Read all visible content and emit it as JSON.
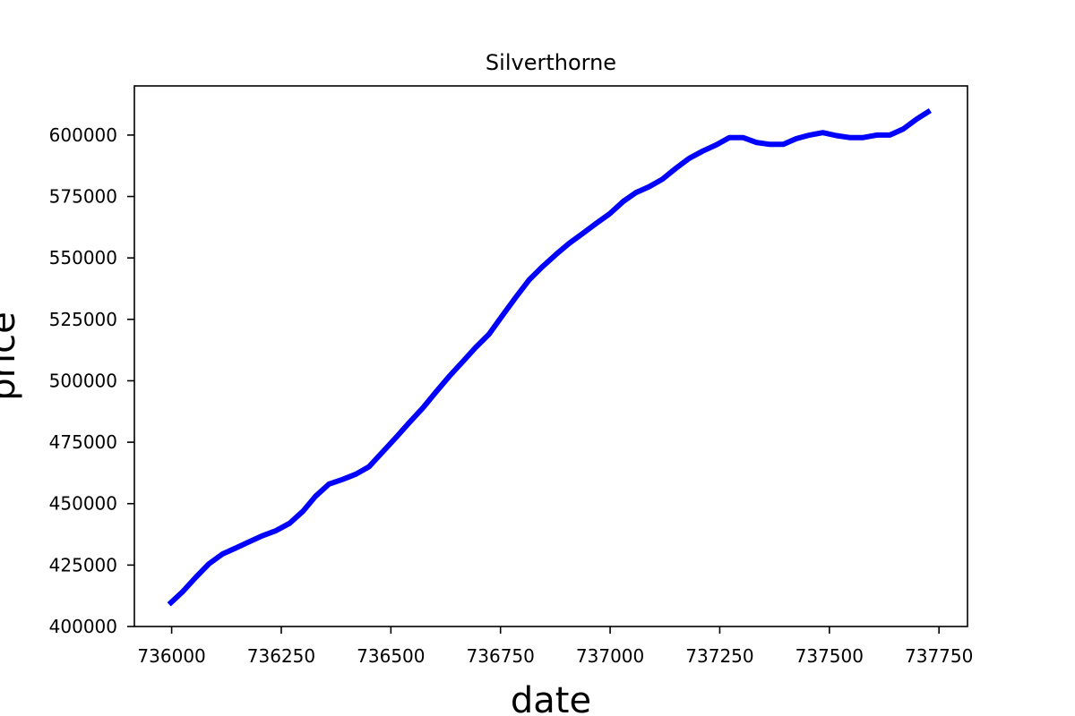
{
  "chart_data": {
    "type": "line",
    "title": "Silverthorne",
    "xlabel": "date",
    "ylabel": "price",
    "xlim": [
      735915,
      737815
    ],
    "ylim": [
      400000,
      620000
    ],
    "x_ticks": [
      736000,
      736250,
      736500,
      736750,
      737000,
      737250,
      737500,
      737750
    ],
    "y_ticks": [
      400000,
      425000,
      450000,
      475000,
      500000,
      525000,
      550000,
      575000,
      600000
    ],
    "x_tick_labels": [
      "736000",
      "736250",
      "736500",
      "736750",
      "737000",
      "737250",
      "737500",
      "737750"
    ],
    "y_tick_labels": [
      "400000",
      "425000",
      "450000",
      "475000",
      "500000",
      "525000",
      "550000",
      "575000",
      "600000"
    ],
    "grid": false,
    "series": [
      {
        "color": "#0000ff",
        "x": [
          735994,
          736024,
          736055,
          736085,
          736116,
          736147,
          736177,
          736208,
          736238,
          736269,
          736300,
          736328,
          736359,
          736389,
          736420,
          736450,
          736481,
          736512,
          736542,
          736573,
          736603,
          736634,
          736665,
          736693,
          736724,
          736754,
          736785,
          736815,
          736846,
          736877,
          736907,
          736938,
          736968,
          736999,
          737030,
          737058,
          737089,
          737119,
          737150,
          737180,
          737211,
          737242,
          737272,
          737303,
          737333,
          737364,
          737395,
          737424,
          737455,
          737485,
          737516,
          737546,
          737577,
          737608,
          737638,
          737669,
          737699,
          737730
        ],
        "y": [
          409000,
          414000,
          420000,
          425500,
          429500,
          432000,
          434500,
          437000,
          439000,
          442000,
          447000,
          453000,
          458000,
          459800,
          462000,
          465000,
          471000,
          477000,
          483000,
          489000,
          495500,
          502000,
          508000,
          513500,
          519000,
          526500,
          534000,
          541000,
          546500,
          551500,
          556000,
          560000,
          564000,
          568000,
          573000,
          576500,
          579000,
          582000,
          586500,
          590500,
          593500,
          596000,
          599000,
          599000,
          597000,
          596200,
          596200,
          598500,
          600000,
          601000,
          599800,
          599000,
          599000,
          600000,
          600000,
          602500,
          606500,
          610000
        ]
      }
    ]
  }
}
